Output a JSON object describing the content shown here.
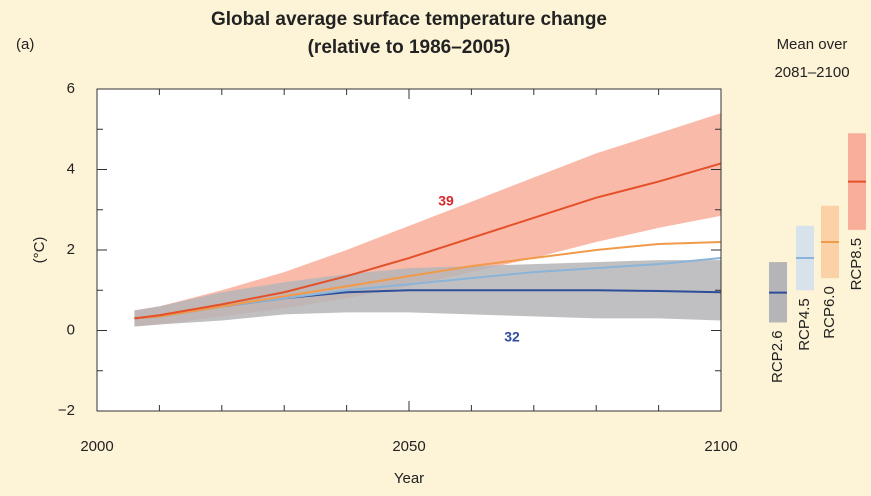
{
  "chart_data": {
    "type": "line",
    "panel_label": "(a)",
    "title": "Global average surface temperature change",
    "subtitle": "(relative to 1986–2005)",
    "xlabel": "Year",
    "ylabel": "(°C)",
    "x": [
      2006,
      2010,
      2020,
      2030,
      2040,
      2050,
      2060,
      2070,
      2080,
      2090,
      2100
    ],
    "xlim": [
      2000,
      2100
    ],
    "xticks": [
      2000,
      2050,
      2100
    ],
    "xminorticks": [
      2010,
      2020,
      2030,
      2040,
      2060,
      2070,
      2080,
      2090
    ],
    "ylim": [
      -2,
      6
    ],
    "yticks": [
      {
        "value": -2,
        "label": "−2"
      },
      0,
      2,
      4,
      6
    ],
    "yminorticks": [
      -1,
      1,
      3,
      5
    ],
    "series": [
      {
        "name": "RCP2.6",
        "color": "#2e4d9a",
        "band_color": "#b5b5b8",
        "values": [
          0.3,
          0.35,
          0.6,
          0.8,
          0.95,
          1.0,
          1.0,
          1.0,
          1.0,
          0.98,
          0.95
        ],
        "lower": [
          0.1,
          0.15,
          0.25,
          0.4,
          0.45,
          0.45,
          0.4,
          0.35,
          0.3,
          0.3,
          0.25
        ],
        "upper": [
          0.5,
          0.6,
          0.95,
          1.2,
          1.4,
          1.55,
          1.6,
          1.65,
          1.7,
          1.75,
          1.75
        ],
        "mean": 0.94,
        "range": [
          0.2,
          1.7
        ]
      },
      {
        "name": "RCP4.5",
        "color": "#8ab4d8",
        "band_color": "#d8e2ea",
        "values": [
          0.3,
          0.35,
          0.6,
          0.8,
          1.0,
          1.15,
          1.3,
          1.45,
          1.55,
          1.65,
          1.8
        ],
        "mean": 1.8,
        "range": [
          1.0,
          2.6
        ]
      },
      {
        "name": "RCP6.0",
        "color": "#f09a4a",
        "band_color": "#fbd2a8",
        "values": [
          0.3,
          0.35,
          0.6,
          0.85,
          1.1,
          1.35,
          1.6,
          1.8,
          2.0,
          2.15,
          2.2
        ],
        "mean": 2.2,
        "range": [
          1.3,
          3.1
        ]
      },
      {
        "name": "RCP8.5",
        "color": "#e4502a",
        "band_color": "#f9ae9a",
        "values": [
          0.3,
          0.38,
          0.65,
          0.95,
          1.35,
          1.8,
          2.3,
          2.8,
          3.3,
          3.7,
          4.15
        ],
        "lower": [
          0.1,
          0.15,
          0.35,
          0.55,
          0.8,
          1.1,
          1.45,
          1.8,
          2.2,
          2.55,
          2.85
        ],
        "upper": [
          0.5,
          0.6,
          1.0,
          1.45,
          2.0,
          2.6,
          3.2,
          3.8,
          4.4,
          4.9,
          5.4
        ],
        "mean": 3.7,
        "range": [
          2.5,
          4.9
        ]
      }
    ],
    "annotations": [
      {
        "text": "39",
        "color": "#d8282a"
      },
      {
        "text": "32",
        "color": "#2e4d9a"
      }
    ],
    "side_panel_title": [
      "Mean over",
      "2081–2100"
    ]
  }
}
